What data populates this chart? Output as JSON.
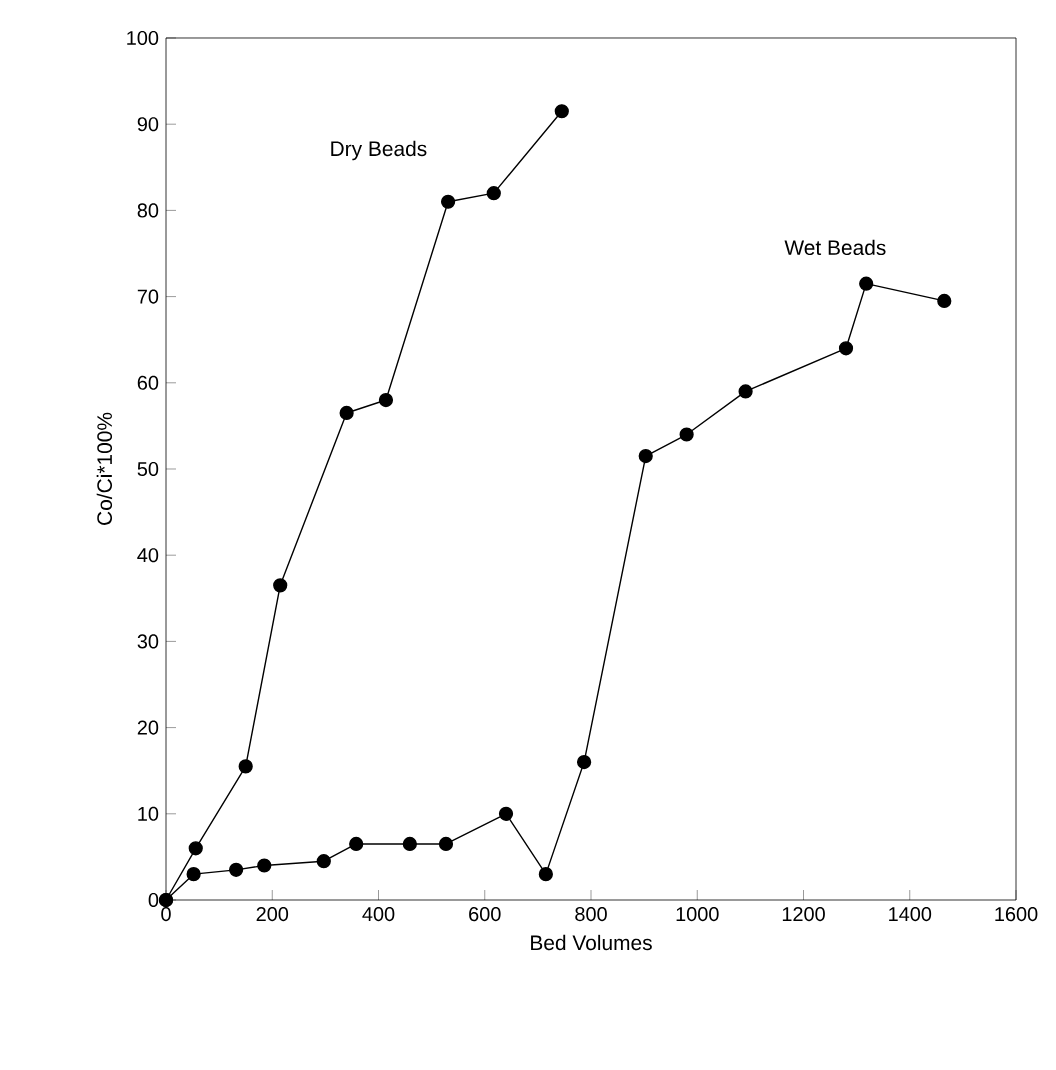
{
  "chart_data": {
    "type": "line",
    "xlabel": "Bed Volumes",
    "ylabel": "Co/Ci*100%",
    "xlim": [
      0,
      1600
    ],
    "ylim": [
      0,
      100
    ],
    "xticks": [
      0,
      200,
      400,
      600,
      800,
      1000,
      1200,
      1400,
      1600
    ],
    "yticks": [
      0,
      10,
      20,
      30,
      40,
      50,
      60,
      70,
      80,
      90,
      100
    ],
    "grid": false,
    "legend": false,
    "marker": "circle",
    "line_style": "solid",
    "series": [
      {
        "name": "Dry Beads",
        "color": "#000000",
        "x": [
          0,
          56,
          150,
          215,
          340,
          414,
          531,
          617,
          745
        ],
        "values": [
          0,
          6,
          15.5,
          36.5,
          56.5,
          58,
          81,
          82,
          91.5
        ]
      },
      {
        "name": "Wet Beads",
        "color": "#000000",
        "x": [
          0,
          52,
          132,
          185,
          297,
          358,
          459,
          527,
          640,
          715,
          787,
          903,
          980,
          1091,
          1280,
          1318,
          1465
        ],
        "values": [
          0,
          3,
          3.5,
          4,
          4.5,
          6.5,
          6.5,
          6.5,
          10,
          3,
          16,
          51.5,
          54,
          59,
          64,
          71.5,
          69.5
        ]
      }
    ]
  }
}
